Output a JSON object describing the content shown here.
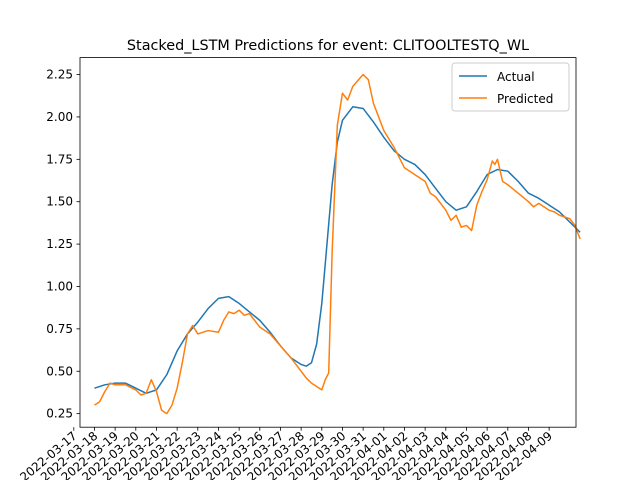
{
  "chart_data": {
    "type": "line",
    "title": "Stacked_LSTM Predictions for event: CLITOOLTESTQ_WL",
    "xlabel": "",
    "ylabel": "",
    "x_type": "date",
    "xlim": [
      "2022-03-17",
      "2022-04-09"
    ],
    "ylim": [
      0.17,
      2.35
    ],
    "x_ticks": [
      "2022-03-17",
      "2022-03-18",
      "2022-03-19",
      "2022-03-20",
      "2022-03-21",
      "2022-03-22",
      "2022-03-23",
      "2022-03-24",
      "2022-03-25",
      "2022-03-26",
      "2022-03-27",
      "2022-03-28",
      "2022-03-29",
      "2022-03-30",
      "2022-03-31",
      "2022-04-01",
      "2022-04-02",
      "2022-04-03",
      "2022-04-04",
      "2022-04-05",
      "2022-04-06",
      "2022-04-07",
      "2022-04-08",
      "2022-04-09"
    ],
    "x_tick_labels": [
      "2022-03-17",
      "2022-03-18",
      "2022-03-19",
      "2022-03-20",
      "2022-03-21",
      "2022-03-22",
      "2022-03-23",
      "2022-03-24",
      "2022-03-25",
      "2022-03-26",
      "2022-03-27",
      "2022-03-28",
      "2022-03-29",
      "2022-03-30",
      "2022-03-31",
      "2022-04-01",
      "2022-04-02",
      "2022-04-03",
      "2022-04-04",
      "2022-04-05",
      "2022-04-06",
      "2022-04-07",
      "2022-04-08",
      "2022-04-09"
    ],
    "y_ticks": [
      0.25,
      0.5,
      0.75,
      1.0,
      1.25,
      1.5,
      1.75,
      2.0,
      2.25
    ],
    "y_tick_labels": [
      "0.25",
      "0.50",
      "0.75",
      "1.00",
      "1.25",
      "1.50",
      "1.75",
      "2.00",
      "2.25"
    ],
    "grid": false,
    "legend": "top-right",
    "series": [
      {
        "name": "Actual",
        "color": "#1f77b4",
        "points": [
          [
            "2022-03-18T00:00",
            0.4
          ],
          [
            "2022-03-18T12:00",
            0.42
          ],
          [
            "2022-03-19T00:00",
            0.43
          ],
          [
            "2022-03-19T12:00",
            0.43
          ],
          [
            "2022-03-20T00:00",
            0.4
          ],
          [
            "2022-03-20T12:00",
            0.37
          ],
          [
            "2022-03-21T00:00",
            0.39
          ],
          [
            "2022-03-21T12:00",
            0.48
          ],
          [
            "2022-03-22T00:00",
            0.62
          ],
          [
            "2022-03-22T12:00",
            0.72
          ],
          [
            "2022-03-23T00:00",
            0.79
          ],
          [
            "2022-03-23T12:00",
            0.87
          ],
          [
            "2022-03-24T00:00",
            0.93
          ],
          [
            "2022-03-24T12:00",
            0.94
          ],
          [
            "2022-03-25T00:00",
            0.9
          ],
          [
            "2022-03-25T12:00",
            0.85
          ],
          [
            "2022-03-26T00:00",
            0.8
          ],
          [
            "2022-03-26T12:00",
            0.73
          ],
          [
            "2022-03-27T00:00",
            0.65
          ],
          [
            "2022-03-27T12:00",
            0.58
          ],
          [
            "2022-03-28T00:00",
            0.54
          ],
          [
            "2022-03-28T06:00",
            0.53
          ],
          [
            "2022-03-28T12:00",
            0.55
          ],
          [
            "2022-03-28T18:00",
            0.66
          ],
          [
            "2022-03-29T00:00",
            0.9
          ],
          [
            "2022-03-29T06:00",
            1.25
          ],
          [
            "2022-03-29T12:00",
            1.6
          ],
          [
            "2022-03-29T18:00",
            1.85
          ],
          [
            "2022-03-30T00:00",
            1.98
          ],
          [
            "2022-03-30T12:00",
            2.06
          ],
          [
            "2022-03-31T00:00",
            2.05
          ],
          [
            "2022-03-31T12:00",
            1.97
          ],
          [
            "2022-04-01T00:00",
            1.88
          ],
          [
            "2022-04-01T12:00",
            1.8
          ],
          [
            "2022-04-02T00:00",
            1.75
          ],
          [
            "2022-04-02T12:00",
            1.72
          ],
          [
            "2022-04-03T00:00",
            1.66
          ],
          [
            "2022-04-03T12:00",
            1.58
          ],
          [
            "2022-04-04T00:00",
            1.5
          ],
          [
            "2022-04-04T12:00",
            1.45
          ],
          [
            "2022-04-05T00:00",
            1.47
          ],
          [
            "2022-04-05T12:00",
            1.56
          ],
          [
            "2022-04-06T00:00",
            1.66
          ],
          [
            "2022-04-06T12:00",
            1.69
          ],
          [
            "2022-04-07T00:00",
            1.68
          ],
          [
            "2022-04-07T12:00",
            1.62
          ],
          [
            "2022-04-08T00:00",
            1.55
          ],
          [
            "2022-04-08T12:00",
            1.52
          ],
          [
            "2022-04-09T00:00",
            1.48
          ],
          [
            "2022-04-09T12:00",
            1.44
          ],
          [
            "2022-04-10T00:00",
            1.38
          ],
          [
            "2022-04-10T12:00",
            1.32
          ]
        ]
      },
      {
        "name": "Predicted",
        "color": "#ff7f0e",
        "points": [
          [
            "2022-03-18T00:00",
            0.3
          ],
          [
            "2022-03-18T06:00",
            0.32
          ],
          [
            "2022-03-18T12:00",
            0.38
          ],
          [
            "2022-03-18T18:00",
            0.43
          ],
          [
            "2022-03-19T00:00",
            0.42
          ],
          [
            "2022-03-19T12:00",
            0.42
          ],
          [
            "2022-03-20T00:00",
            0.39
          ],
          [
            "2022-03-20T06:00",
            0.36
          ],
          [
            "2022-03-20T12:00",
            0.37
          ],
          [
            "2022-03-20T18:00",
            0.45
          ],
          [
            "2022-03-21T00:00",
            0.38
          ],
          [
            "2022-03-21T06:00",
            0.27
          ],
          [
            "2022-03-21T12:00",
            0.25
          ],
          [
            "2022-03-21T18:00",
            0.3
          ],
          [
            "2022-03-22T00:00",
            0.4
          ],
          [
            "2022-03-22T06:00",
            0.55
          ],
          [
            "2022-03-22T12:00",
            0.72
          ],
          [
            "2022-03-22T18:00",
            0.77
          ],
          [
            "2022-03-23T00:00",
            0.72
          ],
          [
            "2022-03-23T12:00",
            0.74
          ],
          [
            "2022-03-24T00:00",
            0.73
          ],
          [
            "2022-03-24T06:00",
            0.8
          ],
          [
            "2022-03-24T12:00",
            0.85
          ],
          [
            "2022-03-24T18:00",
            0.84
          ],
          [
            "2022-03-25T00:00",
            0.86
          ],
          [
            "2022-03-25T06:00",
            0.83
          ],
          [
            "2022-03-25T12:00",
            0.84
          ],
          [
            "2022-03-25T18:00",
            0.8
          ],
          [
            "2022-03-26T00:00",
            0.76
          ],
          [
            "2022-03-26T12:00",
            0.72
          ],
          [
            "2022-03-27T00:00",
            0.65
          ],
          [
            "2022-03-27T12:00",
            0.58
          ],
          [
            "2022-03-28T00:00",
            0.5
          ],
          [
            "2022-03-28T06:00",
            0.46
          ],
          [
            "2022-03-28T12:00",
            0.43
          ],
          [
            "2022-03-28T18:00",
            0.41
          ],
          [
            "2022-03-29T00:00",
            0.39
          ],
          [
            "2022-03-29T04:00",
            0.45
          ],
          [
            "2022-03-29T08:00",
            0.49
          ],
          [
            "2022-03-29T12:00",
            1.2
          ],
          [
            "2022-03-29T18:00",
            1.95
          ],
          [
            "2022-03-30T00:00",
            2.14
          ],
          [
            "2022-03-30T06:00",
            2.1
          ],
          [
            "2022-03-30T12:00",
            2.18
          ],
          [
            "2022-03-31T00:00",
            2.25
          ],
          [
            "2022-03-31T06:00",
            2.22
          ],
          [
            "2022-03-31T12:00",
            2.08
          ],
          [
            "2022-04-01T00:00",
            1.92
          ],
          [
            "2022-04-01T12:00",
            1.82
          ],
          [
            "2022-04-02T00:00",
            1.7
          ],
          [
            "2022-04-02T12:00",
            1.66
          ],
          [
            "2022-04-03T00:00",
            1.62
          ],
          [
            "2022-04-03T06:00",
            1.55
          ],
          [
            "2022-04-03T12:00",
            1.53
          ],
          [
            "2022-04-04T00:00",
            1.45
          ],
          [
            "2022-04-04T06:00",
            1.39
          ],
          [
            "2022-04-04T12:00",
            1.42
          ],
          [
            "2022-04-04T18:00",
            1.35
          ],
          [
            "2022-04-05T00:00",
            1.36
          ],
          [
            "2022-04-05T06:00",
            1.33
          ],
          [
            "2022-04-05T12:00",
            1.48
          ],
          [
            "2022-04-05T18:00",
            1.56
          ],
          [
            "2022-04-06T00:00",
            1.63
          ],
          [
            "2022-04-06T06:00",
            1.74
          ],
          [
            "2022-04-06T09:00",
            1.72
          ],
          [
            "2022-04-06T12:00",
            1.75
          ],
          [
            "2022-04-06T18:00",
            1.62
          ],
          [
            "2022-04-07T00:00",
            1.6
          ],
          [
            "2022-04-07T12:00",
            1.55
          ],
          [
            "2022-04-08T00:00",
            1.5
          ],
          [
            "2022-04-08T06:00",
            1.47
          ],
          [
            "2022-04-08T12:00",
            1.49
          ],
          [
            "2022-04-09T00:00",
            1.45
          ],
          [
            "2022-04-09T06:00",
            1.44
          ],
          [
            "2022-04-09T12:00",
            1.42
          ],
          [
            "2022-04-10T00:00",
            1.4
          ],
          [
            "2022-04-10T06:00",
            1.36
          ],
          [
            "2022-04-10T12:00",
            1.28
          ]
        ]
      }
    ]
  }
}
